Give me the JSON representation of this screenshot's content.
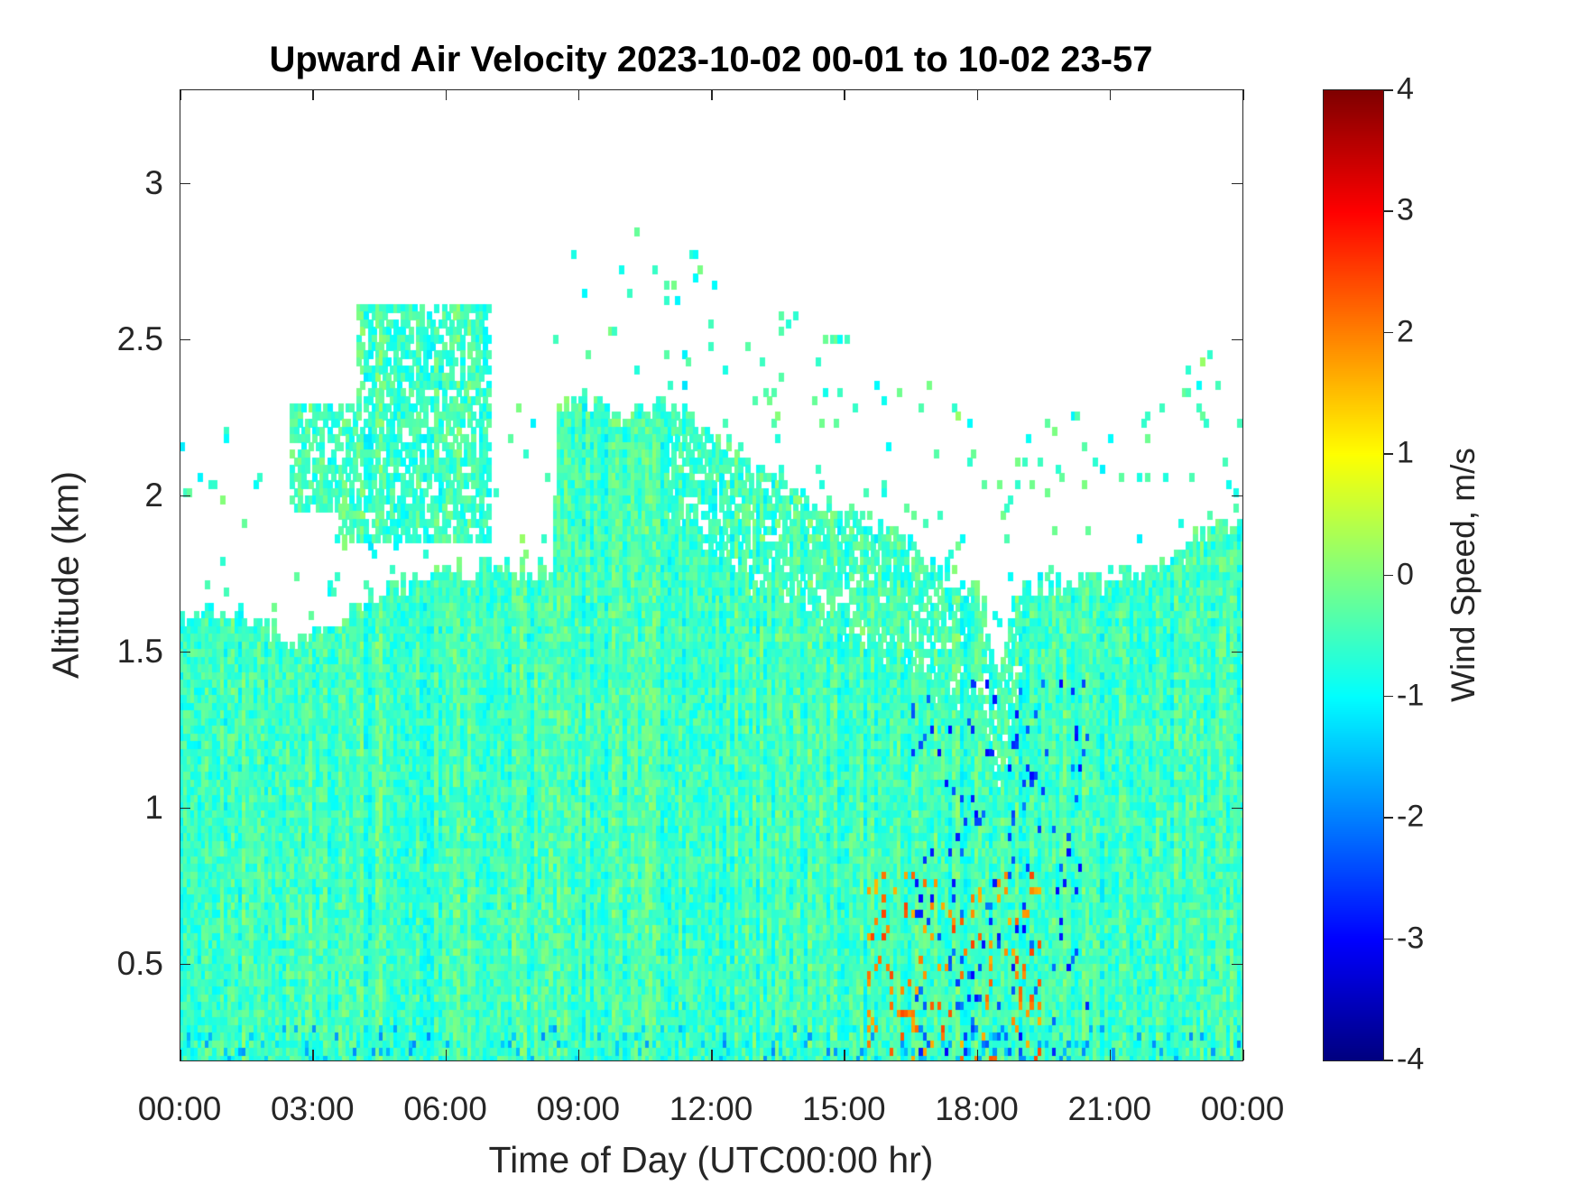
{
  "chart_data": {
    "type": "heatmap",
    "title": "Upward Air Velocity 2023-10-02 00-01 to 10-02 23-57",
    "xlabel": "Time of Day (UTC00:00 hr)",
    "ylabel": "Altitude (km)",
    "x_ticks": [
      "00:00",
      "03:00",
      "06:00",
      "09:00",
      "12:00",
      "15:00",
      "18:00",
      "21:00",
      "00:00"
    ],
    "x_range_hours": [
      0,
      24
    ],
    "y_ticks": [
      0.5,
      1,
      1.5,
      2,
      2.5,
      3
    ],
    "y_tick_labels": [
      "0.5",
      "1",
      "1.5",
      "2",
      "2.5",
      "3"
    ],
    "ylim": [
      0.19,
      3.3
    ],
    "colorbar": {
      "label": "Wind Speed, m/s",
      "range": [
        -4,
        4
      ],
      "ticks": [
        "4",
        "3",
        "2",
        "1",
        "0",
        "-1",
        "-2",
        "-3",
        "-4"
      ],
      "colormap": "jet"
    },
    "data_top_km_by_hour": [
      [
        0,
        1.6
      ],
      [
        1,
        1.63
      ],
      [
        2,
        1.58
      ],
      [
        2.5,
        1.5
      ],
      [
        3,
        1.55
      ],
      [
        4,
        1.65
      ],
      [
        5,
        1.72
      ],
      [
        6,
        1.75
      ],
      [
        7,
        1.77
      ],
      [
        8,
        1.75
      ],
      [
        8.4,
        1.78
      ],
      [
        8.5,
        2.28
      ],
      [
        9,
        2.3
      ],
      [
        10,
        2.25
      ],
      [
        11,
        2.3
      ],
      [
        12,
        2.2
      ],
      [
        13,
        2.1
      ],
      [
        14,
        2.0
      ],
      [
        15,
        1.95
      ],
      [
        16,
        1.9
      ],
      [
        17,
        1.78
      ],
      [
        18,
        1.7
      ],
      [
        18.5,
        1.45
      ],
      [
        18.8,
        1.7
      ],
      [
        20,
        1.72
      ],
      [
        21,
        1.72
      ],
      [
        22,
        1.75
      ],
      [
        23,
        1.85
      ],
      [
        24,
        1.95
      ]
    ],
    "elevated_layer": {
      "time_hours": [
        2.5,
        7.0
      ],
      "altitude_km": [
        1.85,
        2.6
      ],
      "value_ms": -0.5
    },
    "typical_value_ms": -0.5,
    "strong_updrafts": {
      "time_hours": [
        15.5,
        19.5
      ],
      "altitude_km": [
        0.19,
        0.8
      ],
      "value_ms": [
        1.5,
        2.5
      ]
    },
    "strong_downdrafts": {
      "time_hours": [
        16.5,
        20.5
      ],
      "altitude_km": [
        0.19,
        1.4
      ],
      "value_ms": [
        -3,
        -2
      ]
    }
  }
}
